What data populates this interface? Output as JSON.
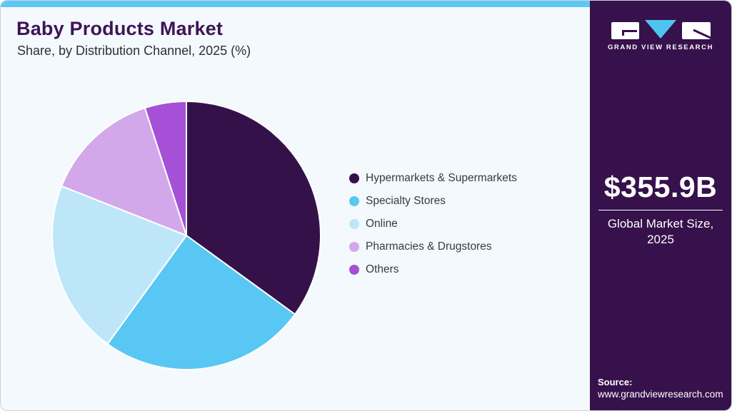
{
  "header": {
    "title": "Baby Products Market",
    "subtitle": "Share, by Distribution Channel, 2025 (%)"
  },
  "chart_data": {
    "type": "pie",
    "title": "Baby Products Market Share, by Distribution Channel, 2025 (%)",
    "categories": [
      "Hypermarkets & Supermarkets",
      "Specialty Stores",
      "Online",
      "Pharmacies & Drugstores",
      "Others"
    ],
    "values": [
      35,
      25,
      21,
      14,
      5
    ],
    "unit": "%",
    "colors": [
      "#35114A",
      "#58C7F3",
      "#BDE7F8",
      "#D2A8EB",
      "#A550D7"
    ],
    "start_angle_deg": 0,
    "direction": "clockwise",
    "legend_position": "right"
  },
  "sidebar": {
    "brand_name": "GRAND VIEW RESEARCH",
    "market_size": {
      "value": "$355.9B",
      "label": "Global Market Size, 2025"
    },
    "source": {
      "label": "Source:",
      "url": "www.grandviewresearch.com"
    }
  },
  "theme": {
    "accent_blue": "#5FC8F2",
    "sidebar_bg": "#36114B",
    "main_bg": "#F3F9FC",
    "title_color": "#3F1456",
    "subtitle_color": "#2E2E37",
    "legend_text_color": "#3A3A44",
    "logo_triangle_blue": "#4FC3F0",
    "slice_border": "#FFFFFF"
  }
}
